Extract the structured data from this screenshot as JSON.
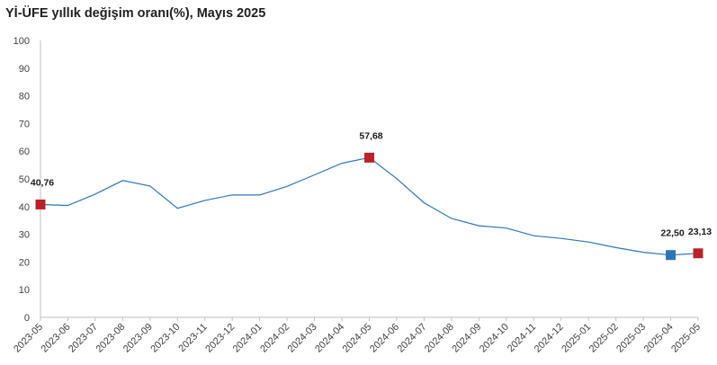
{
  "title": "Yİ-ÜFE yıllık değişim oranı(%), Mayıs 2025",
  "chart_data": {
    "type": "line",
    "title": "Yİ-ÜFE yıllık değişim oranı(%), Mayıs 2025",
    "xlabel": "",
    "ylabel": "",
    "ylim": [
      0,
      100
    ],
    "yticks": [
      0,
      10,
      20,
      30,
      40,
      50,
      60,
      70,
      80,
      90,
      100
    ],
    "grid": false,
    "legend": "none",
    "categories": [
      "2023-05",
      "2023-06",
      "2023-07",
      "2023-08",
      "2023-09",
      "2023-10",
      "2023-11",
      "2023-12",
      "2024-01",
      "2024-02",
      "2024-03",
      "2024-04",
      "2024-05",
      "2024-06",
      "2024-07",
      "2024-08",
      "2024-09",
      "2024-10",
      "2024-11",
      "2024-12",
      "2025-01",
      "2025-02",
      "2025-03",
      "2025-04",
      "2025-05"
    ],
    "series": [
      {
        "color": "#2e75b6",
        "values": [
          40.76,
          40.42,
          44.5,
          49.41,
          47.44,
          39.39,
          42.25,
          44.22,
          44.2,
          47.29,
          51.47,
          55.66,
          57.68,
          50.09,
          41.37,
          35.72,
          33.09,
          32.24,
          29.47,
          28.52,
          27.2,
          25.21,
          23.5,
          22.5,
          23.13
        ]
      }
    ],
    "markers": [
      {
        "index": 0,
        "label": "40,76",
        "color": "#b8232a"
      },
      {
        "index": 12,
        "label": "57,68",
        "color": "#b8232a"
      },
      {
        "index": 23,
        "label": "22,50",
        "color": "#2e75b6"
      },
      {
        "index": 24,
        "label": "23,13",
        "color": "#b8232a"
      }
    ]
  }
}
